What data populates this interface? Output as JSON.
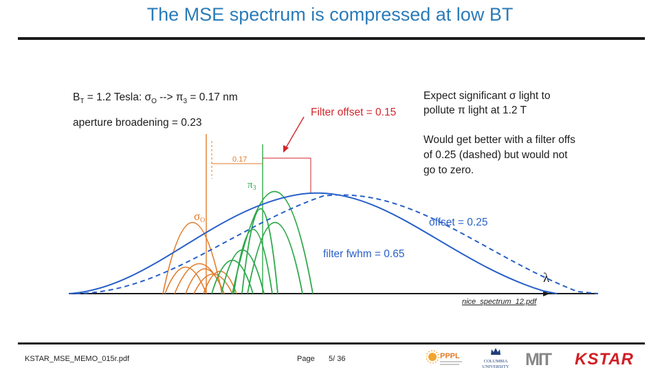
{
  "slide": {
    "title": "The MSE spectrum is compressed at low BT"
  },
  "figure": {
    "bt_line": "B",
    "bt_sub": "T",
    "bt_rest": " = 1.2 Tesla:  σ",
    "sigma_sub": "O",
    "arrow_text": " --> π",
    "pi_sub": "3",
    "pi_value": " = 0.17 nm",
    "aperture_text": "aperture broadening = 0.23",
    "filter_offset_text": "Filter offset = 0.15",
    "expect_text_1": "Expect significant σ light to",
    "expect_text_2": "pollute π light at 1.2 T",
    "would_text_1": "Would get better with a filter offs",
    "would_text_2": "of 0.25 (dashed) but would not",
    "would_text_3": "go to zero.",
    "offset_text": "offset = 0.25",
    "fwhm_text": "filter fwhm = 0.65",
    "dim_label": "0.17",
    "pi3_label": "π",
    "pi3_sub": "3",
    "sigma_label": "σ",
    "sigma_label_sub": "O",
    "lambda_label": "λ",
    "caption": "nice_spectrum_12.pdf",
    "colors": {
      "orange": "#e07b2a",
      "green": "#2ea84a",
      "blue": "#2860c8",
      "red": "#d0262a"
    }
  },
  "footer": {
    "filename": "KSTAR_MSE_MEMO_015r.pdf",
    "page_label": "Page",
    "page_number": "5/ 36",
    "logo_pppl": "PPPL",
    "logo_columbia_1": "COLUMBIA",
    "logo_columbia_2": "UNIVERSITY",
    "logo_mit": "MIT",
    "logo_kstar": "KSTAR"
  }
}
